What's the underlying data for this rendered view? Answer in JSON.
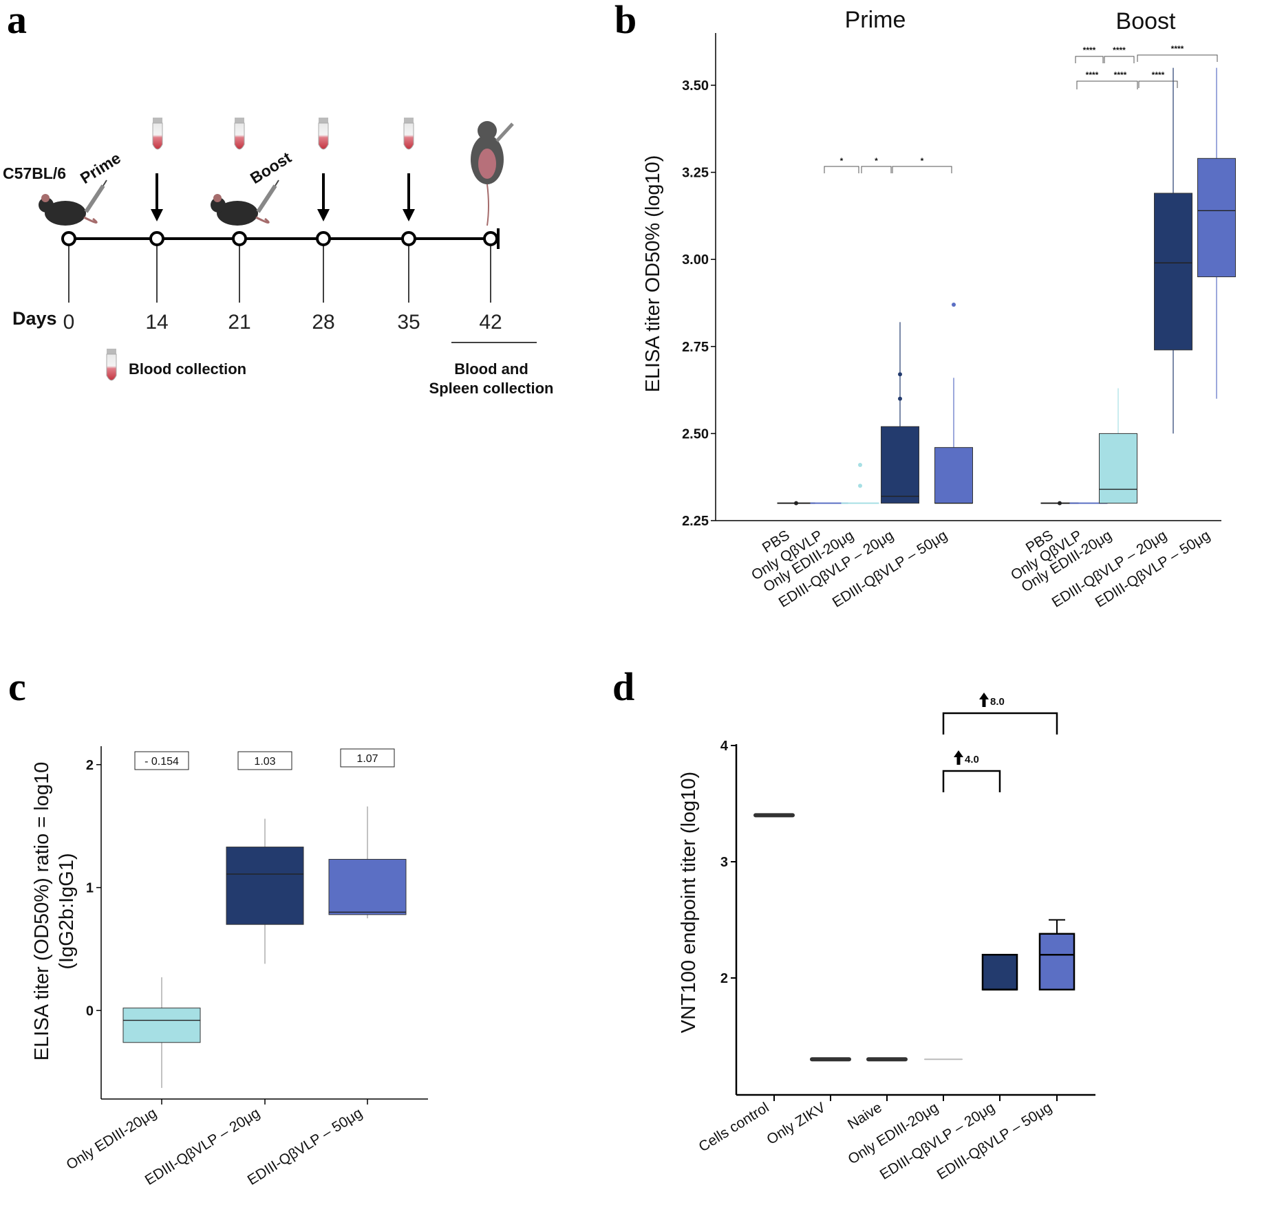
{
  "colors": {
    "light": "#a6dfe4",
    "dark": "#233b6e",
    "mid": "#5b6fc4",
    "pbs": "#333333",
    "grey": "#bbbbbb"
  },
  "panel_a": {
    "label": "a",
    "strain": "C57BL/6",
    "prime": "Prime",
    "boost": "Boost",
    "days_label": "Days",
    "days": [
      "0",
      "14",
      "21",
      "28",
      "35",
      "42"
    ],
    "blood_collection": "Blood collection",
    "final_collection_line1": "Blood and",
    "final_collection_line2": "Spleen collection"
  },
  "panel_b": {
    "label": "b"
  },
  "panel_c": {
    "label": "c"
  },
  "panel_d": {
    "label": "d"
  },
  "chart_data": [
    {
      "panel": "b",
      "type": "box",
      "ylabel": "ELISA titer OD50% (log10)",
      "ylim": [
        2.25,
        3.65
      ],
      "yticks": [
        "2.25",
        "2.50",
        "2.75",
        "3.00",
        "3.25",
        "3.50"
      ],
      "groups": [
        {
          "name": "Prime",
          "categories": [
            "PBS",
            "Only QβVLP",
            "Only EDIII-20μg",
            "EDIII-QβVLP – 20μg",
            "EDIII-QβVLP – 50μg"
          ],
          "boxes": [
            {
              "q1": 2.3,
              "median": 2.3,
              "q3": 2.3,
              "min": 2.3,
              "max": 2.3,
              "color": "pbs"
            },
            {
              "q1": 2.3,
              "median": 2.3,
              "q3": 2.3,
              "min": 2.3,
              "max": 2.3,
              "color": "mid"
            },
            {
              "q1": 2.3,
              "median": 2.3,
              "q3": 2.3,
              "min": 2.3,
              "max": 2.3,
              "color": "light",
              "outliers": [
                2.35,
                2.41
              ]
            },
            {
              "q1": 2.3,
              "median": 2.32,
              "q3": 2.52,
              "min": 2.3,
              "max": 2.82,
              "color": "dark",
              "outliers": [
                2.6,
                2.67
              ]
            },
            {
              "q1": 2.3,
              "median": 2.3,
              "q3": 2.46,
              "min": 2.3,
              "max": 2.66,
              "color": "mid",
              "outliers": [
                2.87
              ]
            }
          ],
          "significance": [
            {
              "from": 1,
              "to": 2,
              "label": "*"
            },
            {
              "from": 2,
              "to": 3,
              "label": "*"
            },
            {
              "from": 3,
              "to": 4,
              "label": "*"
            }
          ]
        },
        {
          "name": "Boost",
          "categories": [
            "PBS",
            "Only QβVLP",
            "Only EDIII-20μg",
            "EDIII-QβVLP – 20μg",
            "EDIII-QβVLP – 50μg"
          ],
          "boxes": [
            {
              "q1": 2.3,
              "median": 2.3,
              "q3": 2.3,
              "min": 2.3,
              "max": 2.3,
              "color": "pbs"
            },
            {
              "q1": 2.3,
              "median": 2.3,
              "q3": 2.3,
              "min": 2.3,
              "max": 2.3,
              "color": "mid"
            },
            {
              "q1": 2.3,
              "median": 2.34,
              "q3": 2.5,
              "min": 2.3,
              "max": 2.63,
              "color": "light"
            },
            {
              "q1": 2.74,
              "median": 2.99,
              "q3": 3.19,
              "min": 2.5,
              "max": 3.55,
              "color": "dark"
            },
            {
              "q1": 2.95,
              "median": 3.14,
              "q3": 3.29,
              "min": 2.6,
              "max": 3.55,
              "color": "mid"
            }
          ],
          "significance": [
            {
              "from": 0,
              "to": 1,
              "label": "****"
            },
            {
              "from": 1,
              "to": 2,
              "label": "****"
            },
            {
              "from": 2,
              "to": 4,
              "label": "****"
            },
            {
              "from": 0,
              "to": 1,
              "label": "****"
            },
            {
              "from": 1,
              "to": 2,
              "label": "****"
            },
            {
              "from": 2,
              "to": 3,
              "label": "****"
            }
          ]
        }
      ]
    },
    {
      "panel": "c",
      "type": "box",
      "ylabel_line1": "ELISA titer (OD50%) ratio = log10",
      "ylabel_line2": "(IgG2b:IgG1)",
      "ylim": [
        -0.72,
        2.15
      ],
      "yticks": [
        "0",
        "1",
        "2"
      ],
      "categories": [
        "Only EDIII-20μg",
        "EDIII-QβVLP – 20μg",
        "EDIII-QβVLP – 50μg"
      ],
      "boxes": [
        {
          "q1": -0.26,
          "median": -0.08,
          "q3": 0.02,
          "min": -0.63,
          "max": 0.27,
          "color": "light"
        },
        {
          "q1": 0.7,
          "median": 1.11,
          "q3": 1.33,
          "min": 0.38,
          "max": 1.56,
          "color": "dark"
        },
        {
          "q1": 0.78,
          "median": 0.8,
          "q3": 1.23,
          "min": 0.75,
          "max": 1.66,
          "color": "mid"
        }
      ],
      "value_labels": [
        "- 0.154",
        "1.03",
        "1.07"
      ]
    },
    {
      "panel": "d",
      "type": "box",
      "ylabel": "VNT100 endpoint titer (log10)",
      "ylim": [
        1.0,
        4.0
      ],
      "yticks": [
        "2",
        "3",
        "4"
      ],
      "categories": [
        "Cells control",
        "Only ZIKV",
        "Naive",
        "Only EDIII-20μg",
        "EDIII-QβVLP – 20μg",
        "EDIII-QβVLP – 50μg"
      ],
      "boxes": [
        {
          "q1": 3.4,
          "median": 3.4,
          "q3": 3.4,
          "min": 3.4,
          "max": 3.4,
          "color": "pbs"
        },
        {
          "q1": 1.3,
          "median": 1.3,
          "q3": 1.3,
          "min": 1.3,
          "max": 1.3,
          "color": "pbs"
        },
        {
          "q1": 1.3,
          "median": 1.3,
          "q3": 1.3,
          "min": 1.3,
          "max": 1.3,
          "color": "pbs"
        },
        {
          "q1": 1.3,
          "median": 1.3,
          "q3": 1.3,
          "min": 1.3,
          "max": 1.3,
          "color": "grey"
        },
        {
          "q1": 1.9,
          "median": 1.9,
          "q3": 2.2,
          "min": 1.9,
          "max": 2.2,
          "color": "dark"
        },
        {
          "q1": 1.9,
          "median": 2.2,
          "q3": 2.38,
          "min": 1.9,
          "max": 2.5,
          "color": "mid"
        }
      ],
      "comparisons": [
        {
          "from": 3,
          "to": 4,
          "label": "4.0"
        },
        {
          "from": 3,
          "to": 5,
          "label": "8.0"
        }
      ]
    }
  ]
}
